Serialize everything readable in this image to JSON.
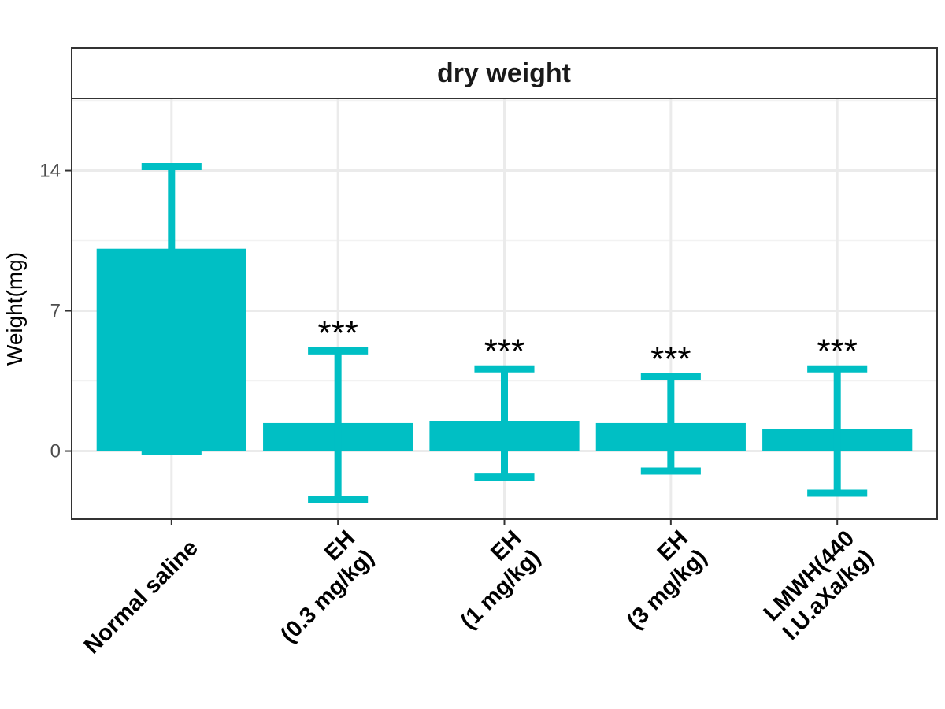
{
  "chart_data": {
    "type": "bar",
    "panel_title": "dry weight",
    "ylabel": "Weight(mg)",
    "xlabel": "",
    "ylim": [
      -3.4,
      17.6
    ],
    "yticks": [
      0,
      7,
      14
    ],
    "grid": true,
    "bar_color": "#00BFC4",
    "categories": [
      [
        "Normal saline"
      ],
      [
        "EH",
        "(0.3 mg/kg)"
      ],
      [
        "EH",
        "(1 mg/kg)"
      ],
      [
        "EH",
        "(3 mg/kg)"
      ],
      [
        "LMWH(440",
        "I.U.aXa/kg)"
      ]
    ],
    "values": [
      10.1,
      1.4,
      1.5,
      1.4,
      1.1
    ],
    "error_upper": [
      14.2,
      5.0,
      4.1,
      3.7,
      4.1
    ],
    "error_lower": [
      0,
      -2.4,
      -1.3,
      -1.0,
      -2.1
    ],
    "annotations": [
      "",
      "***",
      "***",
      "***",
      "***"
    ]
  }
}
